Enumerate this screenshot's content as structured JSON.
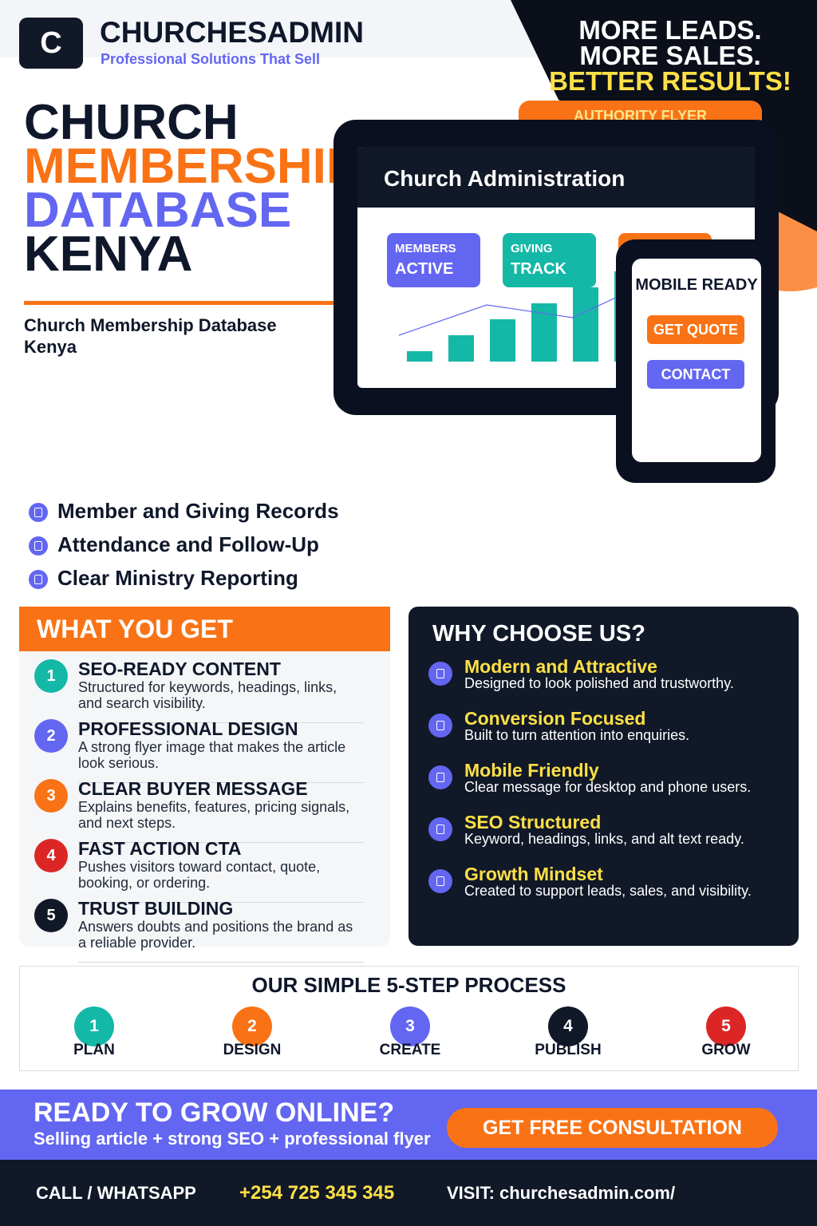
{
  "brand": {
    "logo": "C",
    "name": "CHURCHESADMIN",
    "tagline": "Professional Solutions That Sell"
  },
  "headline": [
    "MORE LEADS.",
    "MORE SALES.",
    "BETTER RESULTS!"
  ],
  "badge": "AUTHORITY FLYER",
  "title": [
    "CHURCH",
    "MEMBERSHIP",
    "DATABASE",
    "KENYA"
  ],
  "subtitle": "Church Membership Database Kenya",
  "dashboard": {
    "title": "Church Administration",
    "cards": [
      {
        "label": "MEMBERS",
        "value": "ACTIVE"
      },
      {
        "label": "GIVING",
        "value": "TRACK"
      }
    ]
  },
  "phone": {
    "title": "MOBILE READY",
    "buttons": [
      "GET QUOTE",
      "CONTACT"
    ]
  },
  "features": [
    "Member and Giving Records",
    "Attendance and Follow-Up",
    "Clear Ministry Reporting"
  ],
  "what_you_get": {
    "title": "WHAT YOU GET",
    "items": [
      {
        "num": "1",
        "title": "SEO-READY CONTENT",
        "text": "Structured for keywords, headings, links, and search visibility."
      },
      {
        "num": "2",
        "title": "PROFESSIONAL DESIGN",
        "text": "A strong flyer image that makes the article look serious."
      },
      {
        "num": "3",
        "title": "CLEAR BUYER MESSAGE",
        "text": "Explains benefits, features, pricing signals, and next steps."
      },
      {
        "num": "4",
        "title": "FAST ACTION CTA",
        "text": "Pushes visitors toward contact, quote, booking, or ordering."
      },
      {
        "num": "5",
        "title": "TRUST BUILDING",
        "text": "Answers doubts and positions the brand as a reliable provider."
      }
    ]
  },
  "why_choose_us": {
    "title": "WHY CHOOSE US?",
    "items": [
      {
        "title": "Modern and Attractive",
        "text": "Designed to look polished and trustworthy."
      },
      {
        "title": "Conversion Focused",
        "text": "Built to turn attention into enquiries."
      },
      {
        "title": "Mobile Friendly",
        "text": "Clear message for desktop and phone users."
      },
      {
        "title": "SEO Structured",
        "text": "Keyword, headings, links, and alt text ready."
      },
      {
        "title": "Growth Mindset",
        "text": "Created to support leads, sales, and visibility."
      }
    ]
  },
  "process": {
    "title": "OUR SIMPLE 5-STEP PROCESS",
    "steps": [
      {
        "num": "1",
        "label": "PLAN"
      },
      {
        "num": "2",
        "label": "DESIGN"
      },
      {
        "num": "3",
        "label": "CREATE"
      },
      {
        "num": "4",
        "label": "PUBLISH"
      },
      {
        "num": "5",
        "label": "GROW"
      }
    ]
  },
  "cta": {
    "title": "READY TO GROW ONLINE?",
    "text": "Selling article + strong SEO + professional flyer",
    "button": "GET FREE CONSULTATION"
  },
  "footer": {
    "call": "CALL / WHATSAPP",
    "phone": "+254 725 345 345",
    "visit": "VISIT: churchesadmin.com/"
  }
}
